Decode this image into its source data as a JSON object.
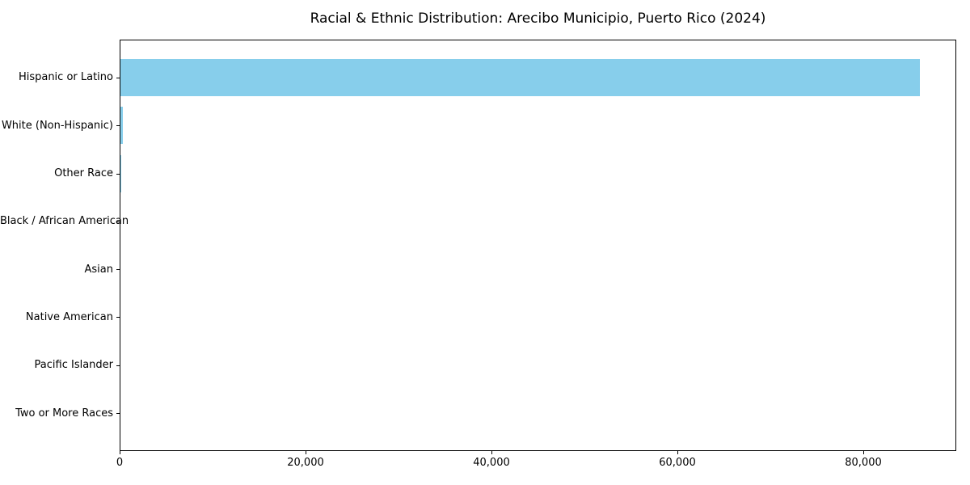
{
  "chart_data": {
    "type": "bar",
    "orientation": "horizontal",
    "title": "Racial & Ethnic Distribution: Arecibo Municipio, Puerto Rico (2024)",
    "categories": [
      "Hispanic or Latino",
      "White (Non-Hispanic)",
      "Other Race",
      "Black / African American",
      "Asian",
      "Native American",
      "Pacific Islander",
      "Two or More Races"
    ],
    "values": [
      86000,
      300,
      100,
      0,
      0,
      0,
      0,
      0
    ],
    "xlabel": "",
    "ylabel": "",
    "xlim": [
      0,
      90000
    ],
    "x_ticks": {
      "values": [
        0,
        20000,
        40000,
        60000,
        80000
      ],
      "labels": [
        "0",
        "20,000",
        "40,000",
        "60,000",
        "80,000"
      ]
    },
    "bar_color": "#87ceeb",
    "spine_color": "#000000",
    "background_color": "#ffffff",
    "grid": false,
    "legend_position": "none"
  }
}
